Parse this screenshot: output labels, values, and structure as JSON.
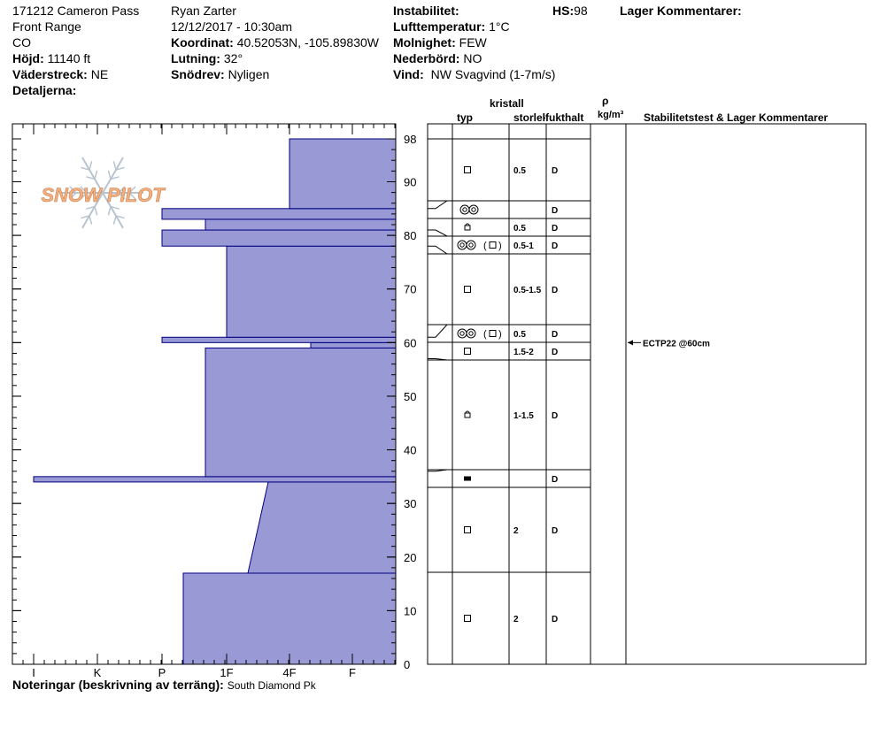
{
  "header": {
    "col1": {
      "site": "171212 Cameron Pass",
      "range": "Front Range",
      "state": "CO",
      "elevation_label": "Höjd:",
      "elevation_value": "11140 ft",
      "aspect_label": "Väderstreck:",
      "aspect_value": "NE",
      "details_label": "Detaljerna:"
    },
    "col2": {
      "observer": "Ryan Zarter",
      "datetime": "12/12/2017 - 10:30am",
      "coord_label": "Koordinat:",
      "coord_value": "40.52053N, -105.89830W",
      "slope_label": "Lutning:",
      "slope_value": "32°",
      "wind_loading_label": "Snödrev:",
      "wind_loading_value": "Nyligen"
    },
    "col3": {
      "instability_label": "Instabilitet:",
      "air_temp_label": "Lufttemperatur:",
      "air_temp_value": "1°C",
      "sky_label": "Molnighet:",
      "sky_value": "FEW",
      "precip_label": "Nederbörd:",
      "precip_value": "NO",
      "wind_label": "Vind:",
      "wind_value": "NW Svagvind (1-7m/s)"
    },
    "hs_label": "HS:",
    "hs_value": "98",
    "layer_comments_label": "Lager Kommentarer:"
  },
  "table_headers": {
    "crystal": "kristall",
    "type": "typ",
    "size": "storlek",
    "moisture": "fukthalt",
    "density_symbol": "ρ",
    "density_unit": "kg/m³",
    "stability": "Stabilitetstest & Lager Kommentarer"
  },
  "notes": {
    "label": "Noteringar (beskrivning av terräng):",
    "value": "South Diamond Pk"
  },
  "logo_text": "SNOW PILOT",
  "colors": {
    "hardness_fill": "#9999d6",
    "hardness_stroke": "#000080",
    "logo": "#f0b080",
    "logo_flake": "#b8c4d0"
  },
  "chart_data": {
    "type": "bar",
    "title": "",
    "xlabel": "",
    "ylabel": "",
    "hardness_scale": [
      "I",
      "K",
      "P",
      "1F",
      "4F",
      "F"
    ],
    "y_ticks": [
      0,
      10,
      20,
      30,
      40,
      50,
      60,
      70,
      80,
      90,
      98
    ],
    "ylim": [
      0,
      98
    ],
    "hardness_profile": [
      {
        "bottom": 0,
        "top": 17,
        "hardness": "P+"
      },
      {
        "bottom": 17,
        "top": 34,
        "hardness_bottom": "1F+",
        "hardness_top": "4F-"
      },
      {
        "bottom": 34,
        "top": 35,
        "hardness": "I"
      },
      {
        "bottom": 35,
        "top": 59,
        "hardness": "1F-"
      },
      {
        "bottom": 59,
        "top": 60,
        "hardness": "4F+"
      },
      {
        "bottom": 60,
        "top": 61,
        "hardness": "P"
      },
      {
        "bottom": 61,
        "top": 78,
        "hardness": "1F"
      },
      {
        "bottom": 78,
        "top": 81,
        "hardness": "P"
      },
      {
        "bottom": 81,
        "top": 83,
        "hardness": "1F-"
      },
      {
        "bottom": 83,
        "top": 85,
        "hardness": "P"
      },
      {
        "bottom": 85,
        "top": 98,
        "hardness": "4F"
      }
    ],
    "layers": [
      {
        "top": 98,
        "bottom": 85,
        "grain": "facet",
        "size": "0.5",
        "moisture": "D"
      },
      {
        "top": 85,
        "bottom": 83,
        "grain": "melt-freeze",
        "size": "",
        "moisture": "D"
      },
      {
        "top": 83,
        "bottom": 81,
        "grain": "rounded-facet",
        "size": "0.5",
        "moisture": "D"
      },
      {
        "top": 81,
        "bottom": 78,
        "grain": "melt-freeze-facet",
        "size": "0.5-1",
        "moisture": "D"
      },
      {
        "top": 78,
        "bottom": 61,
        "grain": "facet",
        "size": "0.5-1.5",
        "moisture": "D"
      },
      {
        "top": 61,
        "bottom": 60,
        "grain": "melt-freeze-facet",
        "size": "0.5",
        "moisture": "D"
      },
      {
        "top": 60,
        "bottom": 57,
        "grain": "facet",
        "size": "1.5-2",
        "moisture": "D"
      },
      {
        "top": 57,
        "bottom": 36,
        "grain": "rounded-facet",
        "size": "1-1.5",
        "moisture": "D"
      },
      {
        "top": 36,
        "bottom": 33,
        "grain": "ice-layer",
        "size": "",
        "moisture": "D"
      },
      {
        "top": 33,
        "bottom": 17,
        "grain": "facet",
        "size": "2",
        "moisture": "D"
      },
      {
        "top": 17,
        "bottom": 0,
        "grain": "facet",
        "size": "2",
        "moisture": "D"
      }
    ],
    "stability_tests": [
      {
        "depth": 60,
        "label": "ECTP22 @60cm"
      }
    ]
  }
}
